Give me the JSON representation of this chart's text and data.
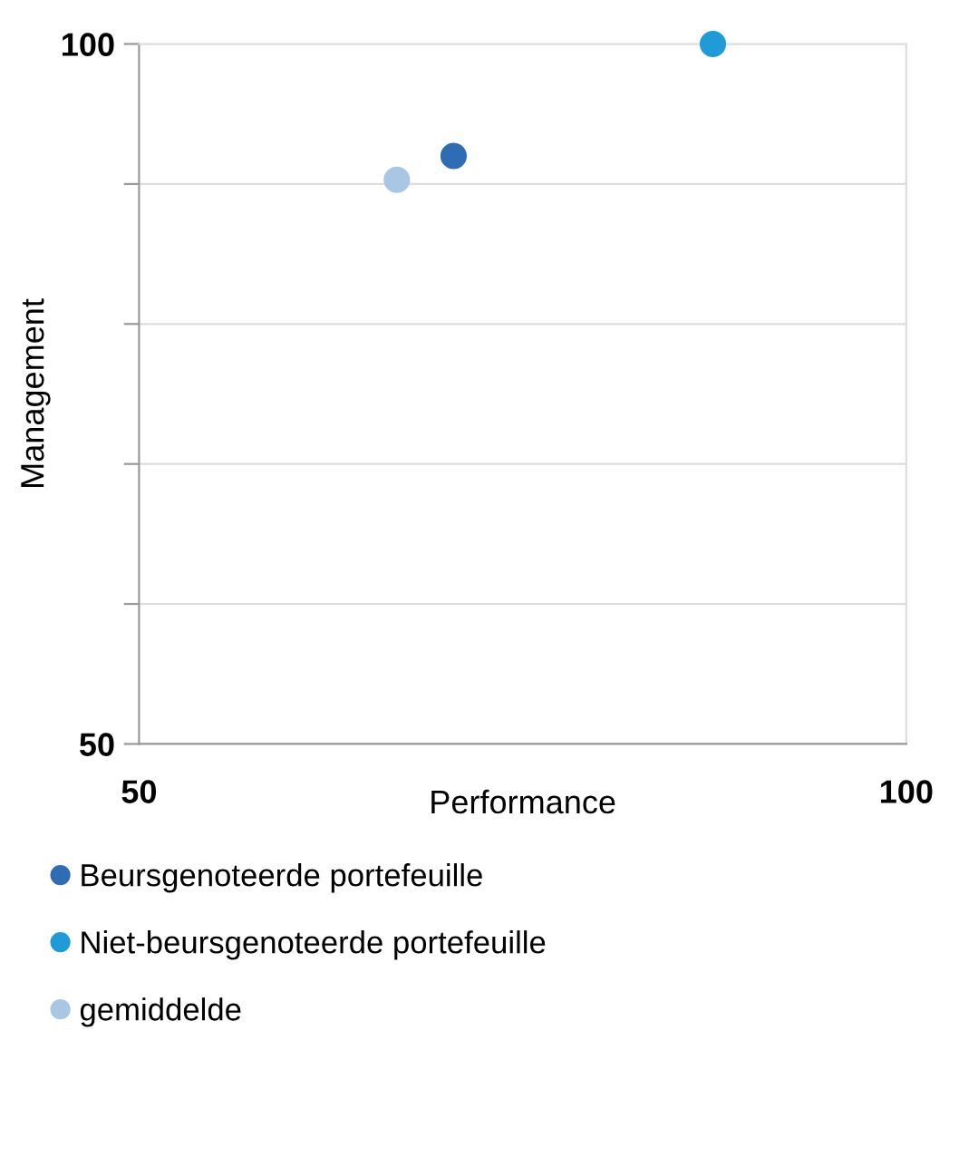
{
  "chart_data": {
    "type": "scatter",
    "xlabel": "Performance",
    "ylabel": "Management",
    "xlim": [
      50,
      100
    ],
    "ylim": [
      50,
      100
    ],
    "xticks": [
      50,
      100
    ],
    "yticks": [
      50,
      {
        "value": 60,
        "label": null
      },
      {
        "value": 70,
        "label": null
      },
      {
        "value": 80,
        "label": null
      },
      {
        "value": 90,
        "label": null
      },
      100
    ],
    "grid": "y",
    "legend": "bottom",
    "marker": "circle",
    "series": [
      {
        "name": "Beursgenoteerde portefeuille",
        "color": "#2e6db4",
        "x": [
          70.5
        ],
        "values": [
          92.0
        ]
      },
      {
        "name": "Niet-beursgenoteerde portefeuille",
        "color": "#1f9bd7",
        "x": [
          87.4
        ],
        "values": [
          100
        ]
      },
      {
        "name": "gemiddelde",
        "color": "#a8c7e5",
        "x": [
          66.8
        ],
        "values": [
          90.3
        ]
      }
    ]
  }
}
